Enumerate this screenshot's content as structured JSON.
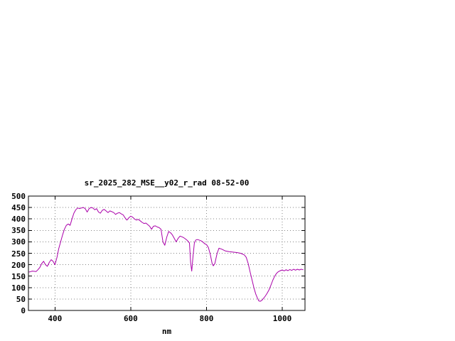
{
  "window": {
    "background": "#ffffff"
  },
  "chart": {
    "title": "sr_2025_282_MSE__y02_r_rad 08-52-00",
    "xlabel": "nm",
    "line_color": "#aa00aa",
    "grid_color": "#858585",
    "axis_color": "#000000",
    "text_color": "#000000"
  },
  "chart_data": {
    "type": "line",
    "title": "sr_2025_282_MSE__y02_r_rad 08-52-00",
    "xlabel": "nm",
    "ylabel": "",
    "xlim": [
      330,
      1060
    ],
    "ylim": [
      0,
      500
    ],
    "xticks": [
      400,
      600,
      800,
      1000
    ],
    "yticks": [
      0,
      50,
      100,
      150,
      200,
      250,
      300,
      350,
      400,
      450,
      500
    ],
    "grid": true,
    "legend": "none",
    "series": [
      {
        "name": "sr_2025_282_MSE__y02_r_rad",
        "x": [
          332,
          336,
          340,
          345,
          350,
          355,
          360,
          365,
          370,
          375,
          380,
          385,
          390,
          395,
          400,
          405,
          410,
          415,
          420,
          425,
          430,
          435,
          440,
          445,
          450,
          455,
          460,
          465,
          470,
          475,
          480,
          485,
          490,
          495,
          500,
          505,
          510,
          515,
          520,
          525,
          530,
          535,
          540,
          545,
          550,
          555,
          560,
          565,
          570,
          575,
          580,
          585,
          590,
          595,
          600,
          605,
          610,
          615,
          620,
          625,
          630,
          635,
          640,
          645,
          650,
          655,
          660,
          665,
          670,
          675,
          680,
          685,
          690,
          695,
          700,
          705,
          710,
          715,
          720,
          725,
          730,
          735,
          740,
          745,
          750,
          755,
          758,
          761,
          764,
          768,
          772,
          776,
          780,
          785,
          790,
          795,
          800,
          805,
          810,
          815,
          818,
          822,
          828,
          833,
          840,
          850,
          860,
          870,
          880,
          890,
          900,
          905,
          910,
          915,
          920,
          925,
          930,
          935,
          938,
          942,
          946,
          950,
          955,
          960,
          965,
          970,
          975,
          980,
          985,
          990,
          995,
          1000,
          1005,
          1010,
          1015,
          1020,
          1025,
          1030,
          1035,
          1040,
          1045,
          1050,
          1055
        ],
        "y": [
          168,
          170,
          172,
          171,
          170,
          178,
          188,
          205,
          215,
          200,
          193,
          210,
          222,
          215,
          200,
          230,
          270,
          300,
          330,
          355,
          372,
          378,
          372,
          400,
          425,
          440,
          448,
          445,
          448,
          450,
          445,
          430,
          445,
          450,
          448,
          440,
          445,
          430,
          425,
          438,
          442,
          435,
          428,
          435,
          432,
          428,
          420,
          425,
          428,
          422,
          418,
          405,
          395,
          405,
          412,
          408,
          400,
          395,
          398,
          392,
          385,
          380,
          382,
          375,
          368,
          355,
          368,
          370,
          365,
          362,
          355,
          300,
          285,
          320,
          345,
          340,
          330,
          315,
          300,
          315,
          325,
          322,
          318,
          312,
          305,
          295,
          210,
          172,
          230,
          295,
          308,
          310,
          308,
          305,
          300,
          292,
          288,
          275,
          245,
          205,
          195,
          205,
          250,
          272,
          268,
          260,
          257,
          255,
          253,
          250,
          243,
          232,
          205,
          170,
          135,
          100,
          72,
          52,
          42,
          40,
          44,
          52,
          62,
          75,
          90,
          110,
          132,
          150,
          162,
          170,
          174,
          177,
          173,
          178,
          174,
          179,
          175,
          180,
          176,
          180,
          177,
          180,
          178
        ]
      }
    ]
  }
}
